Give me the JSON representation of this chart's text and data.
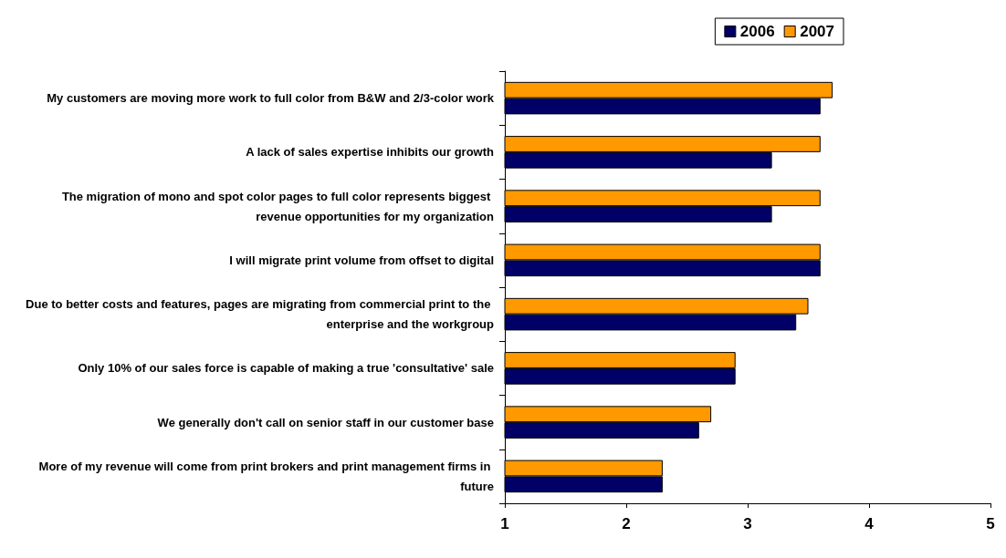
{
  "chart_data": {
    "type": "bar",
    "orientation": "horizontal",
    "categories": [
      "My customers are moving more work to full color from B&W and 2/3-color work",
      "A lack of sales expertise inhibits our growth",
      "The migration of mono and spot color pages to full color represents biggest revenue opportunities for my organization",
      "I will migrate print volume from offset to digital",
      "Due to better costs and features, pages are migrating from commercial print to the enterprise and the workgroup",
      "Only 10% of our sales force is capable of making a true 'consultative' sale",
      "We generally don't call on senior staff in our customer base",
      "More of my revenue will come from print brokers and print management firms in future"
    ],
    "series": [
      {
        "name": "2006",
        "color": "#000066",
        "values": [
          3.6,
          3.2,
          3.2,
          3.6,
          3.4,
          2.9,
          2.6,
          2.3
        ]
      },
      {
        "name": "2007",
        "color": "#ff9900",
        "values": [
          3.7,
          3.6,
          3.6,
          3.6,
          3.5,
          2.9,
          2.7,
          2.3
        ]
      }
    ],
    "xlim": [
      1,
      5
    ],
    "xticks": [
      1,
      2,
      3,
      4,
      5
    ],
    "grid": false,
    "legend": "top right"
  }
}
